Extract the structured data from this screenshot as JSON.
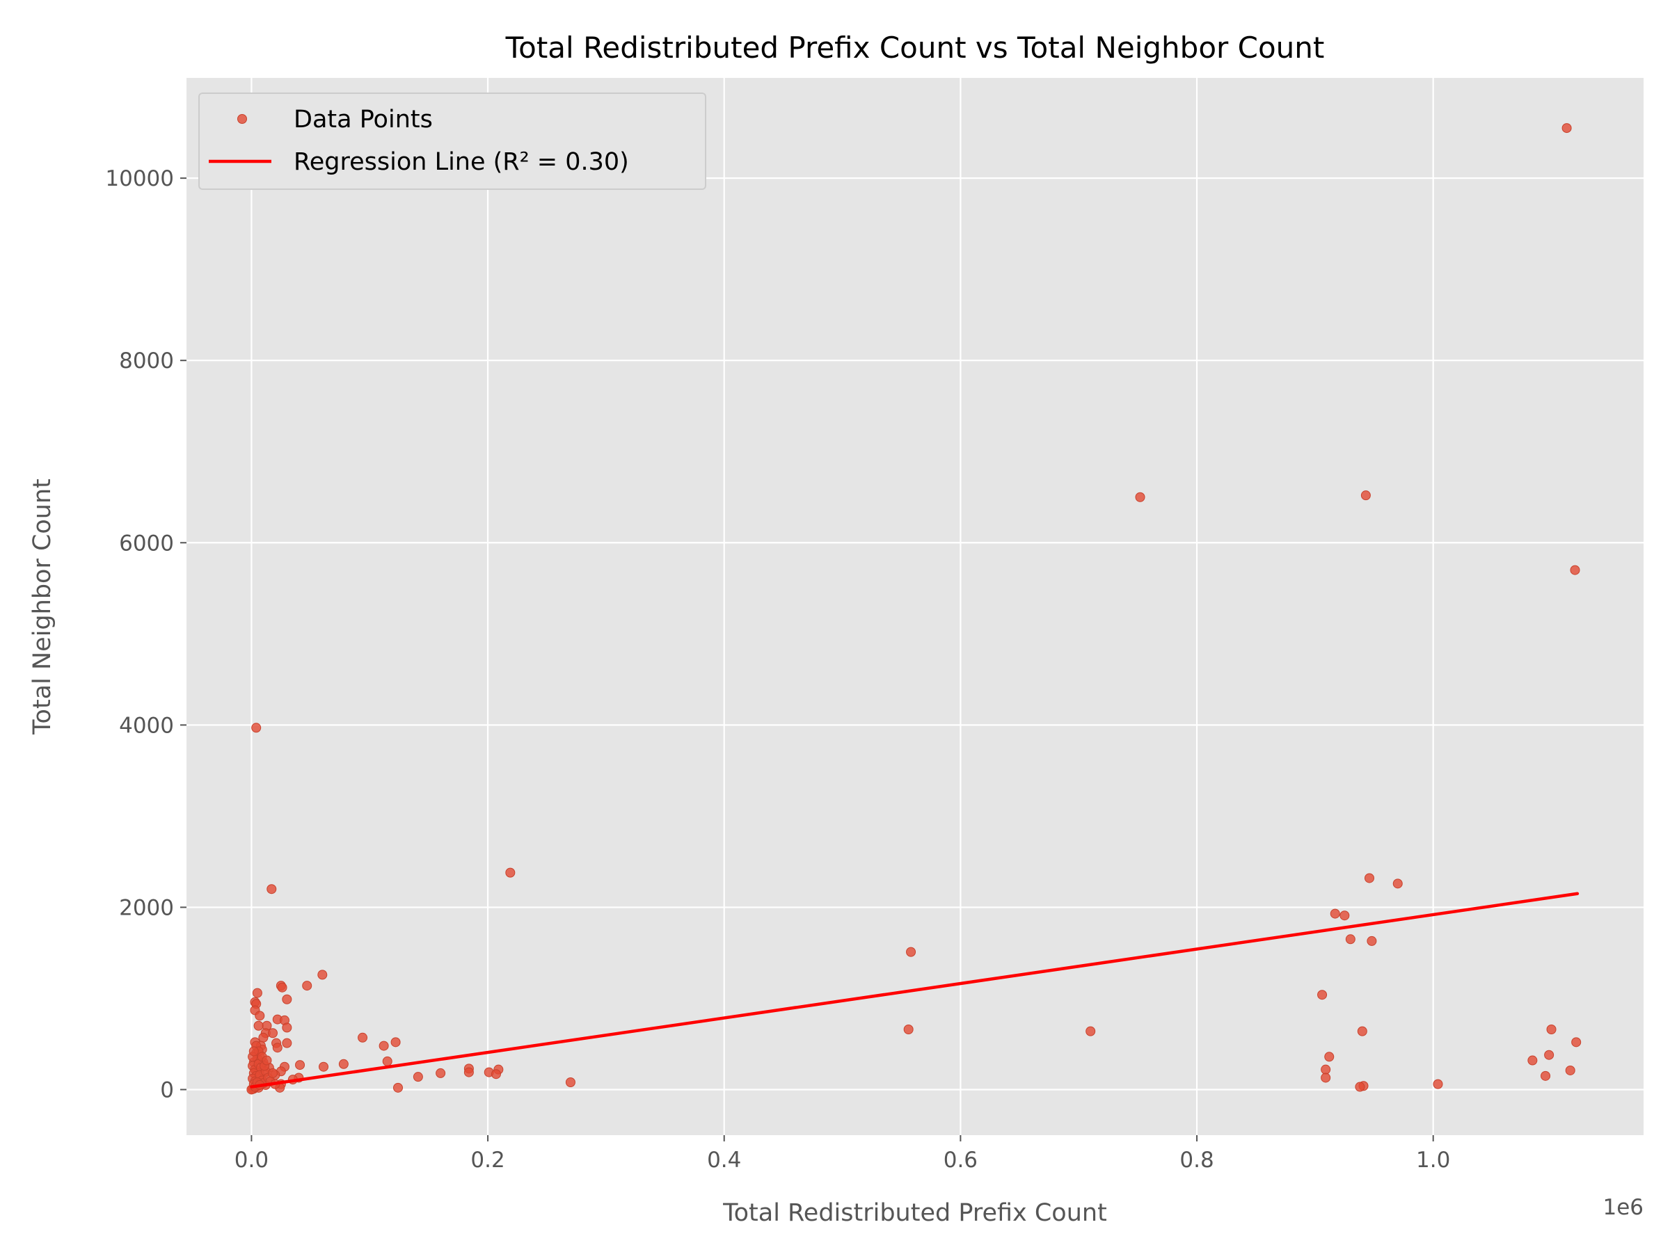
{
  "chart_data": {
    "type": "scatter",
    "title": "Total Redistributed Prefix Count vs Total Neighbor Count",
    "xlabel": "Total Redistributed Prefix Count",
    "ylabel": "Total Neighbor Count",
    "x_offset_label": "1e6",
    "xlim": [
      -0.055,
      1.178
    ],
    "ylim": [
      -500,
      11100
    ],
    "x_ticks": [
      0.0,
      0.2,
      0.4,
      0.6,
      0.8,
      1.0
    ],
    "x_tick_labels": [
      "0.0",
      "0.2",
      "0.4",
      "0.6",
      "0.8",
      "1.0"
    ],
    "y_ticks": [
      0,
      2000,
      4000,
      6000,
      8000,
      10000
    ],
    "y_tick_labels": [
      "0",
      "2000",
      "4000",
      "6000",
      "8000",
      "10000"
    ],
    "grid": true,
    "legend_position": "top-left",
    "colors": {
      "points": "#E24A33",
      "line": "#FF0000",
      "background": "#E5E5E5",
      "grid": "#FFFFFF"
    },
    "series": [
      {
        "name": "Data Points",
        "kind": "scatter",
        "points": [
          [
            1.113,
            10550
          ],
          [
            0.752,
            6500
          ],
          [
            0.943,
            6520
          ],
          [
            1.12,
            5700
          ],
          [
            0.004,
            3970
          ],
          [
            0.017,
            2200
          ],
          [
            0.219,
            2380
          ],
          [
            0.946,
            2320
          ],
          [
            0.97,
            2260
          ],
          [
            0.917,
            1930
          ],
          [
            0.925,
            1910
          ],
          [
            0.93,
            1650
          ],
          [
            0.948,
            1630
          ],
          [
            0.558,
            1510
          ],
          [
            0.06,
            1260
          ],
          [
            0.047,
            1140
          ],
          [
            0.025,
            1140
          ],
          [
            0.026,
            1120
          ],
          [
            0.906,
            1040
          ],
          [
            0.005,
            1060
          ],
          [
            0.003,
            960
          ],
          [
            0.004,
            940
          ],
          [
            0.003,
            870
          ],
          [
            0.03,
            990
          ],
          [
            0.007,
            810
          ],
          [
            0.022,
            770
          ],
          [
            0.028,
            760
          ],
          [
            0.013,
            700
          ],
          [
            0.006,
            700
          ],
          [
            0.03,
            680
          ],
          [
            0.556,
            660
          ],
          [
            1.1,
            660
          ],
          [
            0.71,
            640
          ],
          [
            0.94,
            640
          ],
          [
            0.012,
            620
          ],
          [
            0.018,
            620
          ],
          [
            0.01,
            570
          ],
          [
            0.094,
            570
          ],
          [
            0.122,
            520
          ],
          [
            1.121,
            520
          ],
          [
            0.003,
            520
          ],
          [
            0.03,
            510
          ],
          [
            0.021,
            510
          ],
          [
            0.112,
            480
          ],
          [
            0.008,
            480
          ],
          [
            0.022,
            460
          ],
          [
            0.009,
            440
          ],
          [
            0.004,
            400
          ],
          [
            0.007,
            380
          ],
          [
            1.098,
            380
          ],
          [
            0.912,
            360
          ],
          [
            1.084,
            320
          ],
          [
            0.115,
            310
          ],
          [
            0.01,
            300
          ],
          [
            0.078,
            280
          ],
          [
            0.041,
            270
          ],
          [
            0.061,
            250
          ],
          [
            0.028,
            250
          ],
          [
            0.015,
            240
          ],
          [
            0.184,
            230
          ],
          [
            0.209,
            220
          ],
          [
            0.909,
            220
          ],
          [
            1.116,
            210
          ],
          [
            0.004,
            210
          ],
          [
            0.025,
            200
          ],
          [
            0.201,
            190
          ],
          [
            0.184,
            190
          ],
          [
            0.16,
            180
          ],
          [
            0.011,
            180
          ],
          [
            0.207,
            170
          ],
          [
            0.02,
            160
          ],
          [
            1.095,
            150
          ],
          [
            0.141,
            140
          ],
          [
            0.909,
            130
          ],
          [
            0.04,
            130
          ],
          [
            0.008,
            120
          ],
          [
            0.035,
            110
          ],
          [
            0.27,
            80
          ],
          [
            1.004,
            60
          ],
          [
            0.025,
            60
          ],
          [
            0.012,
            50
          ],
          [
            0.005,
            40
          ],
          [
            0.941,
            40
          ],
          [
            0.938,
            30
          ],
          [
            0.124,
            20
          ],
          [
            0.024,
            20
          ],
          [
            0.006,
            20
          ],
          [
            0.002,
            10
          ],
          [
            0.001,
            5
          ],
          [
            0.0,
            0
          ],
          [
            0.002,
            300
          ],
          [
            0.001,
            260
          ],
          [
            0.003,
            220
          ],
          [
            0.002,
            180
          ],
          [
            0.004,
            150
          ],
          [
            0.001,
            120
          ],
          [
            0.003,
            90
          ],
          [
            0.002,
            60
          ],
          [
            0.005,
            340
          ],
          [
            0.006,
            280
          ],
          [
            0.008,
            240
          ],
          [
            0.007,
            160
          ],
          [
            0.009,
            100
          ],
          [
            0.01,
            70
          ],
          [
            0.012,
            200
          ],
          [
            0.014,
            130
          ],
          [
            0.016,
            90
          ],
          [
            0.018,
            180
          ],
          [
            0.02,
            60
          ],
          [
            0.004,
            480
          ],
          [
            0.006,
            420
          ],
          [
            0.009,
            360
          ],
          [
            0.011,
            260
          ],
          [
            0.013,
            320
          ],
          [
            0.003,
            30
          ],
          [
            0.005,
            80
          ],
          [
            0.007,
            50
          ],
          [
            0.001,
            360
          ],
          [
            0.002,
            420
          ]
        ]
      },
      {
        "name": "Regression Line (R² = 0.30)",
        "kind": "line",
        "points": [
          [
            0.0,
            30
          ],
          [
            1.122,
            2150
          ]
        ]
      }
    ]
  }
}
